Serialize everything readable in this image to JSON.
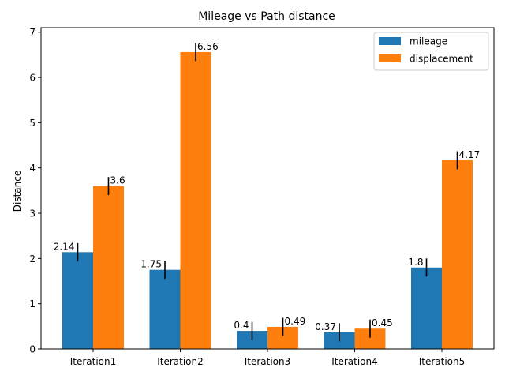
{
  "chart_data": {
    "type": "bar",
    "title": "Mileage vs Path distance",
    "xlabel": "",
    "ylabel": "Distance",
    "categories": [
      "Iteration1",
      "Iteration2",
      "Iteration3",
      "Iteration4",
      "Iteration5"
    ],
    "series": [
      {
        "name": "mileage",
        "color": "#1f77b4",
        "values": [
          2.14,
          1.75,
          0.4,
          0.37,
          1.8
        ],
        "value_labels": [
          "2.14",
          "1.75",
          "0.4",
          "0.37",
          "1.8"
        ],
        "error": [
          0.2,
          0.2,
          0.2,
          0.2,
          0.2
        ]
      },
      {
        "name": "displacement",
        "color": "#ff7f0e",
        "values": [
          3.6,
          6.56,
          0.49,
          0.45,
          4.17
        ],
        "value_labels": [
          "3.6",
          "6.56",
          "0.49",
          "0.45",
          "4.17"
        ],
        "error": [
          0.2,
          0.2,
          0.2,
          0.2,
          0.2
        ]
      }
    ],
    "ylim": [
      0,
      7.1
    ],
    "yticks": [
      0,
      1,
      2,
      3,
      4,
      5,
      6,
      7
    ],
    "ytick_labels": [
      "0",
      "1",
      "2",
      "3",
      "4",
      "5",
      "6",
      "7"
    ],
    "grid": false,
    "legend_position": "top-right"
  }
}
